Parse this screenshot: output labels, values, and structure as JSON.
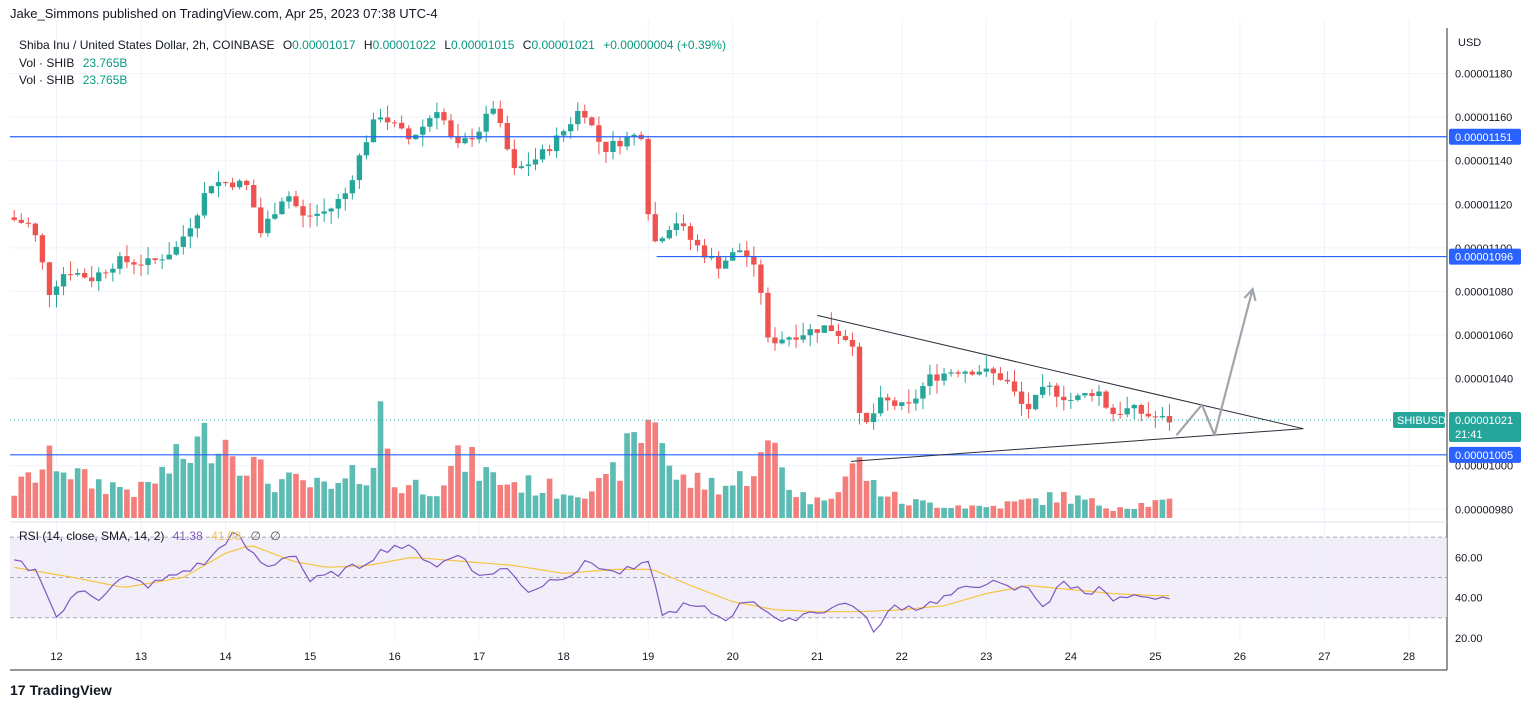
{
  "publisher_line": "Jake_Simmons published on TradingView.com, Apr 25, 2023 07:38 UTC-4",
  "legend": {
    "symbol_line": "Shiba Inu / United States Dollar, 2h, COINBASE",
    "o_label": "O",
    "o_value": "0.00001017",
    "h_label": "H",
    "h_value": "0.00001022",
    "l_label": "L",
    "l_value": "0.00001015",
    "c_label": "C",
    "c_value": "0.00001021",
    "change": "+0.00000004 (+0.39%)",
    "vol_label": "Vol · SHIB",
    "vol_value": "23.765B"
  },
  "rsi_legend": {
    "label": "RSI (14, close, SMA, 14, 2)",
    "rsi_value": "41.38",
    "sma_value": "41.08",
    "icon1": "∅",
    "icon2": "∅"
  },
  "footer": {
    "logo_mark": "17",
    "logo_text": "TradingView"
  },
  "colors": {
    "up": "#26a69a",
    "down": "#ef5350",
    "hline": "#2962ff",
    "rsi": "#7e57c2",
    "rsi_sma": "#f5c542",
    "rsi_band": "#ede7f6",
    "arrow": "#a0a4ab"
  },
  "chart_data": {
    "type": "candlestick",
    "title": "Shiba Inu / United States Dollar, 2h, COINBASE",
    "currency_label": "USD",
    "y_ticks": [
      "0.00001180",
      "0.00001160",
      "0.00001140",
      "0.00001120",
      "0.00001100",
      "0.00001080",
      "0.00001060",
      "0.00001040",
      "0.00001000",
      "0.00000980"
    ],
    "y_tick_values": [
      11.8,
      11.6,
      11.4,
      11.2,
      11.0,
      10.8,
      10.6,
      10.4,
      10.0,
      9.8
    ],
    "ylim": [
      9.76,
      12.0
    ],
    "y_scale_note": "prices in units of 1e-6 USD",
    "x_ticks": [
      "12",
      "13",
      "14",
      "15",
      "16",
      "17",
      "18",
      "19",
      "20",
      "21",
      "22",
      "23",
      "24",
      "25",
      "26",
      "27",
      "28"
    ],
    "x_tick_days": [
      12,
      13,
      14,
      15,
      16,
      17,
      18,
      19,
      20,
      21,
      22,
      23,
      24,
      25,
      26,
      27,
      28
    ],
    "xlim_days": [
      11.45,
      28.45
    ],
    "bars_per_day": 12,
    "first_bar_day": 11.5,
    "horizontal_levels": [
      {
        "label": "0.00001151",
        "value": 11.51,
        "from_day": 11.45
      },
      {
        "label": "0.00001096",
        "value": 10.96,
        "from_day": 19.1
      },
      {
        "label": "0.00001005",
        "value": 10.05,
        "from_day": 11.45
      }
    ],
    "current_price": {
      "symbol": "SHIBUSD",
      "label": "0.00001021",
      "value": 10.21,
      "countdown": "21:41"
    },
    "triangle": {
      "upper": [
        {
          "day": 21.0,
          "value": 10.69
        },
        {
          "day": 26.75,
          "value": 10.17
        }
      ],
      "lower": [
        {
          "day": 21.4,
          "value": 10.02
        },
        {
          "day": 26.75,
          "value": 10.17
        }
      ]
    },
    "projection_arrow": [
      {
        "day": 25.25,
        "value": 10.14
      },
      {
        "day": 25.55,
        "value": 10.28
      },
      {
        "day": 25.7,
        "value": 10.14
      },
      {
        "day": 26.15,
        "value": 10.81
      }
    ],
    "anchors": [
      [
        11.5,
        11.14
      ],
      [
        11.8,
        11.1
      ],
      [
        12.0,
        10.8
      ],
      [
        12.2,
        10.9
      ],
      [
        12.5,
        10.86
      ],
      [
        12.8,
        10.94
      ],
      [
        13.2,
        10.93
      ],
      [
        13.5,
        11.0
      ],
      [
        13.7,
        11.13
      ],
      [
        13.9,
        11.3
      ],
      [
        14.2,
        11.3
      ],
      [
        14.35,
        11.28
      ],
      [
        14.5,
        11.07
      ],
      [
        14.8,
        11.26
      ],
      [
        15.0,
        11.14
      ],
      [
        15.3,
        11.17
      ],
      [
        15.5,
        11.25
      ],
      [
        15.75,
        11.5
      ],
      [
        15.9,
        11.62
      ],
      [
        16.25,
        11.5
      ],
      [
        16.4,
        11.55
      ],
      [
        16.6,
        11.65
      ],
      [
        16.8,
        11.45
      ],
      [
        17.1,
        11.55
      ],
      [
        17.25,
        11.65
      ],
      [
        17.5,
        11.35
      ],
      [
        17.8,
        11.42
      ],
      [
        18.05,
        11.52
      ],
      [
        18.3,
        11.65
      ],
      [
        18.55,
        11.45
      ],
      [
        18.8,
        11.5
      ],
      [
        19.05,
        11.53
      ],
      [
        19.1,
        11.0
      ],
      [
        19.4,
        11.13
      ],
      [
        19.6,
        11.03
      ],
      [
        19.9,
        10.92
      ],
      [
        20.2,
        11.0
      ],
      [
        20.4,
        10.85
      ],
      [
        20.5,
        10.57
      ],
      [
        20.8,
        10.6
      ],
      [
        21.2,
        10.64
      ],
      [
        21.5,
        10.57
      ],
      [
        21.6,
        10.15
      ],
      [
        21.85,
        10.3
      ],
      [
        22.15,
        10.26
      ],
      [
        22.4,
        10.4
      ],
      [
        22.7,
        10.44
      ],
      [
        23.0,
        10.44
      ],
      [
        23.3,
        10.4
      ],
      [
        23.55,
        10.25
      ],
      [
        23.8,
        10.36
      ],
      [
        24.1,
        10.3
      ],
      [
        24.4,
        10.35
      ],
      [
        24.55,
        10.24
      ],
      [
        24.8,
        10.26
      ],
      [
        25.0,
        10.23
      ],
      [
        25.2,
        10.21
      ]
    ],
    "volume_anchors": [
      [
        11.5,
        0.25
      ],
      [
        12.0,
        0.55
      ],
      [
        12.3,
        0.35
      ],
      [
        13.0,
        0.25
      ],
      [
        13.9,
        0.8
      ],
      [
        14.5,
        0.35
      ],
      [
        15.0,
        0.3
      ],
      [
        15.3,
        0.25
      ],
      [
        15.75,
        0.5
      ],
      [
        15.85,
        1.0
      ],
      [
        16.0,
        0.3
      ],
      [
        16.5,
        0.3
      ],
      [
        16.8,
        0.55
      ],
      [
        17.2,
        0.35
      ],
      [
        18.0,
        0.25
      ],
      [
        18.5,
        0.3
      ],
      [
        19.1,
        1.0
      ],
      [
        19.3,
        0.35
      ],
      [
        20.0,
        0.3
      ],
      [
        20.5,
        0.65
      ],
      [
        20.7,
        0.25
      ],
      [
        21.0,
        0.15
      ],
      [
        21.5,
        0.5
      ],
      [
        21.65,
        0.3
      ],
      [
        22.0,
        0.15
      ],
      [
        23.0,
        0.1
      ],
      [
        23.9,
        0.2
      ],
      [
        24.5,
        0.1
      ],
      [
        25.15,
        0.15
      ],
      [
        25.25,
        0.05
      ]
    ],
    "rsi_ticks": [
      "60.00",
      "40.00",
      "20.00"
    ],
    "rsi_tick_values": [
      60,
      40,
      20
    ],
    "rsi_band": [
      30,
      70
    ],
    "rsi_ylim": [
      18,
      76
    ],
    "rsi_anchors": [
      [
        11.5,
        58
      ],
      [
        11.8,
        52
      ],
      [
        12.0,
        30
      ],
      [
        12.1,
        35
      ],
      [
        12.3,
        45
      ],
      [
        12.5,
        40
      ],
      [
        12.8,
        50
      ],
      [
        13.1,
        46
      ],
      [
        13.5,
        53
      ],
      [
        13.8,
        58
      ],
      [
        13.95,
        66
      ],
      [
        14.1,
        72
      ],
      [
        14.35,
        60
      ],
      [
        14.5,
        55
      ],
      [
        14.8,
        63
      ],
      [
        15.0,
        48
      ],
      [
        15.3,
        52
      ],
      [
        15.6,
        56
      ],
      [
        15.8,
        62
      ],
      [
        16.0,
        66
      ],
      [
        16.2,
        64
      ],
      [
        16.5,
        56
      ],
      [
        16.8,
        62
      ],
      [
        17.0,
        50
      ],
      [
        17.3,
        55
      ],
      [
        17.6,
        43
      ],
      [
        17.9,
        50
      ],
      [
        18.1,
        52
      ],
      [
        18.3,
        58
      ],
      [
        18.6,
        52
      ],
      [
        18.9,
        55
      ],
      [
        19.05,
        57
      ],
      [
        19.15,
        30
      ],
      [
        19.4,
        36
      ],
      [
        19.7,
        34
      ],
      [
        19.9,
        29
      ],
      [
        20.2,
        40
      ],
      [
        20.4,
        34
      ],
      [
        20.6,
        26
      ],
      [
        20.8,
        32
      ],
      [
        21.1,
        34
      ],
      [
        21.4,
        38
      ],
      [
        21.55,
        30
      ],
      [
        21.7,
        23
      ],
      [
        21.9,
        36
      ],
      [
        22.2,
        35
      ],
      [
        22.5,
        40
      ],
      [
        22.8,
        45
      ],
      [
        23.0,
        48
      ],
      [
        23.3,
        44
      ],
      [
        23.5,
        45
      ],
      [
        23.7,
        35
      ],
      [
        23.9,
        48
      ],
      [
        24.2,
        42
      ],
      [
        24.35,
        47
      ],
      [
        24.45,
        38
      ],
      [
        24.7,
        40
      ],
      [
        25.0,
        38
      ],
      [
        25.2,
        41
      ]
    ],
    "rsi_sma_anchors": [
      [
        11.5,
        55
      ],
      [
        12.2,
        50
      ],
      [
        12.8,
        45
      ],
      [
        13.5,
        50
      ],
      [
        14.0,
        62
      ],
      [
        14.3,
        66
      ],
      [
        14.8,
        58
      ],
      [
        15.2,
        55
      ],
      [
        15.7,
        56
      ],
      [
        16.2,
        60
      ],
      [
        16.8,
        58
      ],
      [
        17.4,
        56
      ],
      [
        18.0,
        52
      ],
      [
        18.6,
        54
      ],
      [
        19.05,
        54
      ],
      [
        19.5,
        46
      ],
      [
        20.0,
        38
      ],
      [
        20.5,
        34
      ],
      [
        21.0,
        33
      ],
      [
        21.5,
        33
      ],
      [
        22.0,
        34
      ],
      [
        22.5,
        36
      ],
      [
        23.0,
        42
      ],
      [
        23.5,
        46
      ],
      [
        24.0,
        44
      ],
      [
        24.5,
        42
      ],
      [
        25.0,
        41
      ],
      [
        25.2,
        41
      ]
    ]
  }
}
